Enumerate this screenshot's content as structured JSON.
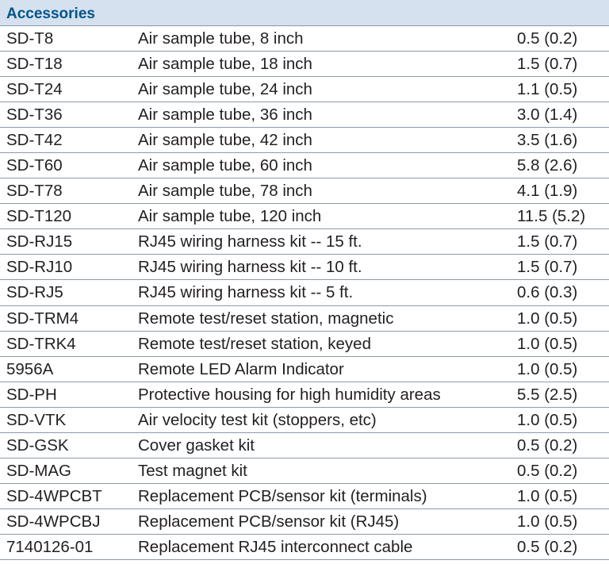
{
  "title": "Accessories",
  "rows": [
    {
      "model": "SD-T8",
      "description": "Air sample tube, 8 inch",
      "weight": "0.5 (0.2)"
    },
    {
      "model": "SD-T18",
      "description": "Air sample tube, 18 inch",
      "weight": "1.5 (0.7)"
    },
    {
      "model": "SD-T24",
      "description": "Air sample tube, 24 inch",
      "weight": "1.1 (0.5)"
    },
    {
      "model": "SD-T36",
      "description": "Air sample tube, 36 inch",
      "weight": "3.0 (1.4)"
    },
    {
      "model": "SD-T42",
      "description": "Air sample tube, 42 inch",
      "weight": "3.5 (1.6)"
    },
    {
      "model": "SD-T60",
      "description": "Air sample tube, 60 inch",
      "weight": "5.8 (2.6)"
    },
    {
      "model": "SD-T78",
      "description": "Air sample tube, 78 inch",
      "weight": "4.1 (1.9)"
    },
    {
      "model": "SD-T120",
      "description": "Air sample tube, 120 inch",
      "weight": "11.5 (5.2)"
    },
    {
      "model": "SD-RJ15",
      "description": "RJ45 wiring harness kit -- 15 ft.",
      "weight": "1.5 (0.7)"
    },
    {
      "model": "SD-RJ10",
      "description": "RJ45 wiring harness kit -- 10 ft.",
      "weight": "1.5 (0.7)"
    },
    {
      "model": "SD-RJ5",
      "description": "RJ45 wiring harness kit -- 5 ft.",
      "weight": "0.6 (0.3)"
    },
    {
      "model": "SD-TRM4",
      "description": "Remote test/reset station, magnetic",
      "weight": "1.0 (0.5)"
    },
    {
      "model": "SD-TRK4",
      "description": "Remote test/reset station, keyed",
      "weight": "1.0 (0.5)"
    },
    {
      "model": "5956A",
      "description": "Remote LED Alarm Indicator",
      "weight": "1.0 (0.5)"
    },
    {
      "model": "SD-PH",
      "description": "Protective housing for high humidity areas",
      "weight": "5.5 (2.5)"
    },
    {
      "model": "SD-VTK",
      "description": "Air velocity test kit (stoppers, etc)",
      "weight": "1.0 (0.5)"
    },
    {
      "model": "SD-GSK",
      "description": "Cover gasket kit",
      "weight": "0.5 (0.2)"
    },
    {
      "model": "SD-MAG",
      "description": "Test magnet kit",
      "weight": "0.5 (0.2)"
    },
    {
      "model": "SD-4WPCBT",
      "description": "Replacement PCB/sensor kit (terminals)",
      "weight": "1.0 (0.5)"
    },
    {
      "model": "SD-4WPCBJ",
      "description": "Replacement PCB/sensor kit (RJ45)",
      "weight": "1.0 (0.5)"
    },
    {
      "model": "7140126-01",
      "description": "Replacement RJ45 interconnect cable",
      "weight": "0.5 (0.2)"
    }
  ]
}
